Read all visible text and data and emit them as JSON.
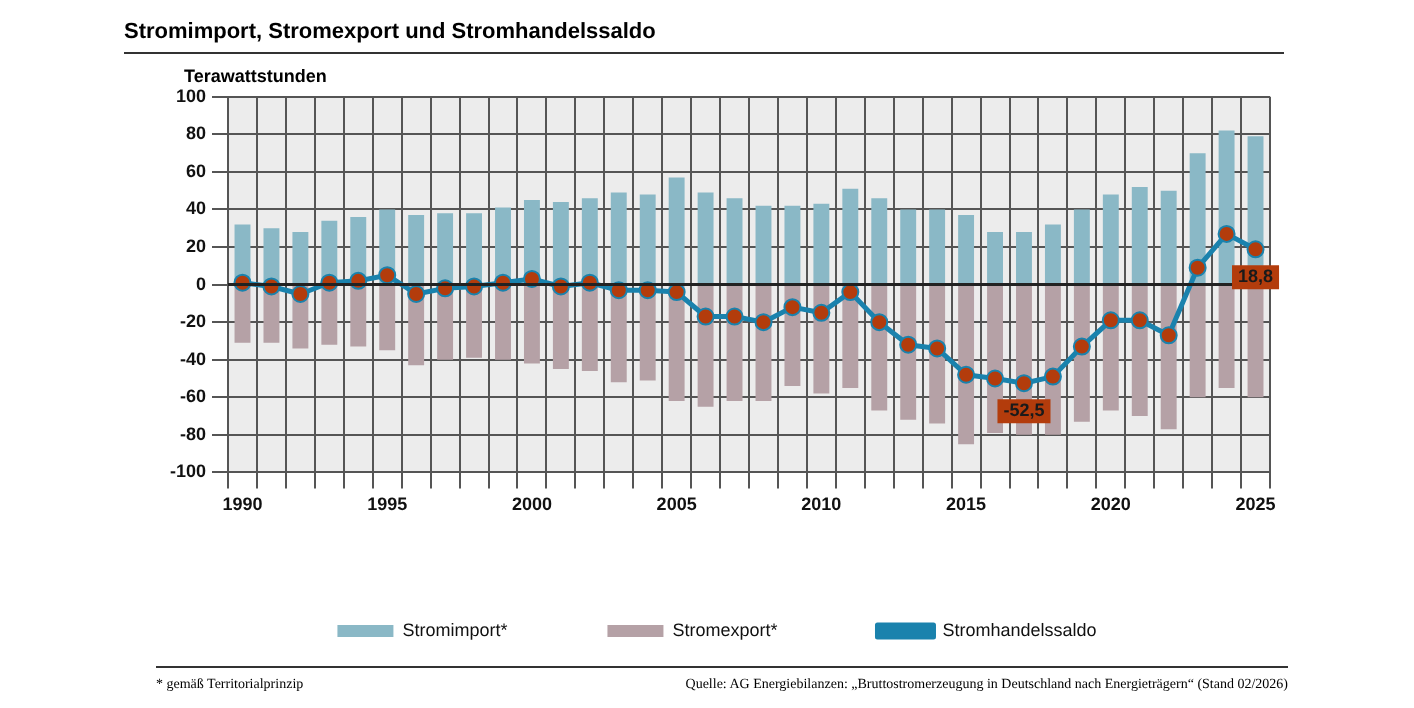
{
  "chart_data": {
    "type": "bar",
    "title": "Stromimport, Stromexport und Stromhandelssaldo",
    "ylabel": "Terawattstunden",
    "annotations": [
      "* gemäß Territorialprinzip",
      "Quelle: AG Energiebilanzen: „Bruttostromerzeugung in Deutschland nach Energieträgern“ (Stand 02/2026)"
    ],
    "categories": [
      "1990",
      null,
      null,
      null,
      null,
      "1995",
      null,
      null,
      null,
      null,
      "2000",
      null,
      null,
      null,
      null,
      "2005",
      null,
      null,
      null,
      null,
      "2010",
      null,
      null,
      null,
      null,
      "2015",
      null,
      null,
      null,
      null,
      "2020",
      null,
      null,
      null,
      null,
      "2025"
    ],
    "series": [
      {
        "name": "Stromimport*",
        "color": "#8ab8c6",
        "values": [
          32,
          30,
          28,
          34,
          36,
          40,
          37,
          38,
          38,
          41,
          45,
          44,
          46,
          49,
          48,
          57,
          49,
          46,
          42,
          42,
          43,
          51,
          46,
          40,
          40,
          37,
          28,
          28,
          32,
          40,
          48,
          52,
          50,
          70,
          82,
          79
        ]
      },
      {
        "name": "Stromexport*",
        "color": "#b5a1a6",
        "values": [
          -31,
          -31,
          -34,
          -32,
          -33,
          -35,
          -43,
          -40,
          -39,
          -40,
          -42,
          -45,
          -46,
          -52,
          -51,
          -62,
          -65,
          -62,
          -62,
          -54,
          -58,
          -55,
          -67,
          -72,
          -74,
          -85,
          -79,
          -80,
          -80,
          -73,
          -67,
          -70,
          -77,
          -60,
          -55,
          -60
        ]
      },
      {
        "name": "Stromhandelssaldo",
        "type": "line",
        "color": "#1a82ad",
        "values": [
          1,
          -1,
          -5,
          1,
          2,
          5,
          -5,
          -2,
          -1,
          1,
          3,
          -1,
          1,
          -3,
          -3,
          -4,
          -17,
          -17,
          -20,
          -12,
          -15,
          -4,
          -20,
          -32,
          -34,
          -48,
          -50,
          -52.5,
          -49,
          -33,
          -19,
          -19,
          -27,
          9,
          27,
          18.8
        ],
        "value_labels": [
          null,
          null,
          null,
          null,
          null,
          null,
          null,
          null,
          null,
          null,
          null,
          null,
          null,
          null,
          null,
          null,
          null,
          null,
          null,
          null,
          null,
          null,
          null,
          null,
          null,
          null,
          null,
          "-52,5",
          null,
          null,
          null,
          null,
          null,
          null,
          null,
          "18,8"
        ]
      }
    ],
    "stacked": true,
    "ylim": [
      -100,
      100
    ],
    "yticks": [
      -100,
      -80,
      -60,
      -40,
      -20,
      0,
      20,
      40,
      60,
      80,
      100
    ],
    "grid": true,
    "legend": "bottom",
    "marker": "circle"
  }
}
